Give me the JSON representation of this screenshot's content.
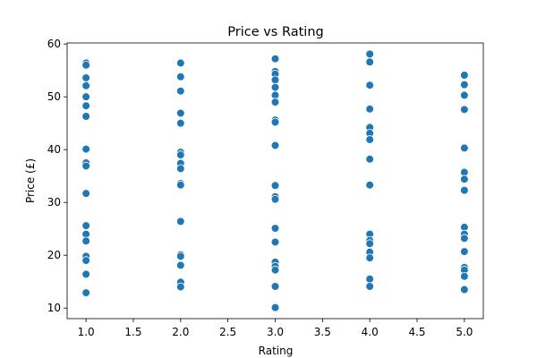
{
  "chart_data": {
    "type": "scatter",
    "title": "Price vs Rating",
    "xlabel": "Rating",
    "ylabel": "Price (£)",
    "xlim": [
      0.8,
      5.2
    ],
    "ylim": [
      8.0,
      60.2
    ],
    "xticks": [
      "1.0",
      "1.5",
      "2.0",
      "2.5",
      "3.0",
      "3.5",
      "4.0",
      "4.5",
      "5.0"
    ],
    "yticks": [
      "10",
      "20",
      "30",
      "40",
      "50",
      "60"
    ],
    "grid": false,
    "marker_color": "#1f77b4",
    "marker_edge": "#ffffff",
    "points": [
      [
        1.0,
        56.4
      ],
      [
        1.0,
        56.0
      ],
      [
        1.0,
        53.6
      ],
      [
        1.0,
        52.1
      ],
      [
        1.0,
        50.0
      ],
      [
        1.0,
        48.3
      ],
      [
        1.0,
        46.3
      ],
      [
        1.0,
        40.1
      ],
      [
        1.0,
        37.5
      ],
      [
        1.0,
        36.9
      ],
      [
        1.0,
        31.7
      ],
      [
        1.0,
        25.6
      ],
      [
        1.0,
        24.0
      ],
      [
        1.0,
        22.7
      ],
      [
        1.0,
        19.8
      ],
      [
        1.0,
        19.0
      ],
      [
        1.0,
        16.4
      ],
      [
        1.0,
        12.9
      ],
      [
        2.0,
        56.4
      ],
      [
        2.0,
        53.8
      ],
      [
        2.0,
        51.1
      ],
      [
        2.0,
        46.9
      ],
      [
        2.0,
        45.0
      ],
      [
        2.0,
        39.5
      ],
      [
        2.0,
        39.0
      ],
      [
        2.0,
        37.4
      ],
      [
        2.0,
        36.4
      ],
      [
        2.0,
        33.6
      ],
      [
        2.0,
        33.3
      ],
      [
        2.0,
        26.4
      ],
      [
        2.0,
        20.1
      ],
      [
        2.0,
        19.8
      ],
      [
        2.0,
        18.1
      ],
      [
        2.0,
        14.9
      ],
      [
        2.0,
        14.0
      ],
      [
        3.0,
        57.2
      ],
      [
        3.0,
        54.8
      ],
      [
        3.0,
        54.3
      ],
      [
        3.0,
        53.2
      ],
      [
        3.0,
        51.8
      ],
      [
        3.0,
        50.3
      ],
      [
        3.0,
        49.0
      ],
      [
        3.0,
        45.6
      ],
      [
        3.0,
        45.2
      ],
      [
        3.0,
        40.8
      ],
      [
        3.0,
        33.2
      ],
      [
        3.0,
        31.1
      ],
      [
        3.0,
        30.6
      ],
      [
        3.0,
        25.1
      ],
      [
        3.0,
        22.5
      ],
      [
        3.0,
        18.7
      ],
      [
        3.0,
        17.9
      ],
      [
        3.0,
        17.2
      ],
      [
        3.0,
        14.1
      ],
      [
        3.0,
        10.1
      ],
      [
        4.0,
        58.1
      ],
      [
        4.0,
        56.6
      ],
      [
        4.0,
        52.2
      ],
      [
        4.0,
        47.7
      ],
      [
        4.0,
        44.2
      ],
      [
        4.0,
        43.1
      ],
      [
        4.0,
        41.9
      ],
      [
        4.0,
        38.2
      ],
      [
        4.0,
        33.3
      ],
      [
        4.0,
        24.0
      ],
      [
        4.0,
        22.8
      ],
      [
        4.0,
        22.2
      ],
      [
        4.0,
        20.6
      ],
      [
        4.0,
        19.5
      ],
      [
        4.0,
        15.5
      ],
      [
        4.0,
        14.1
      ],
      [
        5.0,
        54.1
      ],
      [
        5.0,
        52.3
      ],
      [
        5.0,
        50.3
      ],
      [
        5.0,
        47.6
      ],
      [
        5.0,
        40.3
      ],
      [
        5.0,
        35.7
      ],
      [
        5.0,
        34.4
      ],
      [
        5.0,
        32.3
      ],
      [
        5.0,
        25.3
      ],
      [
        5.0,
        24.0
      ],
      [
        5.0,
        23.2
      ],
      [
        5.0,
        20.7
      ],
      [
        5.0,
        17.7
      ],
      [
        5.0,
        17.2
      ],
      [
        5.0,
        16.0
      ],
      [
        5.0,
        13.5
      ]
    ]
  }
}
